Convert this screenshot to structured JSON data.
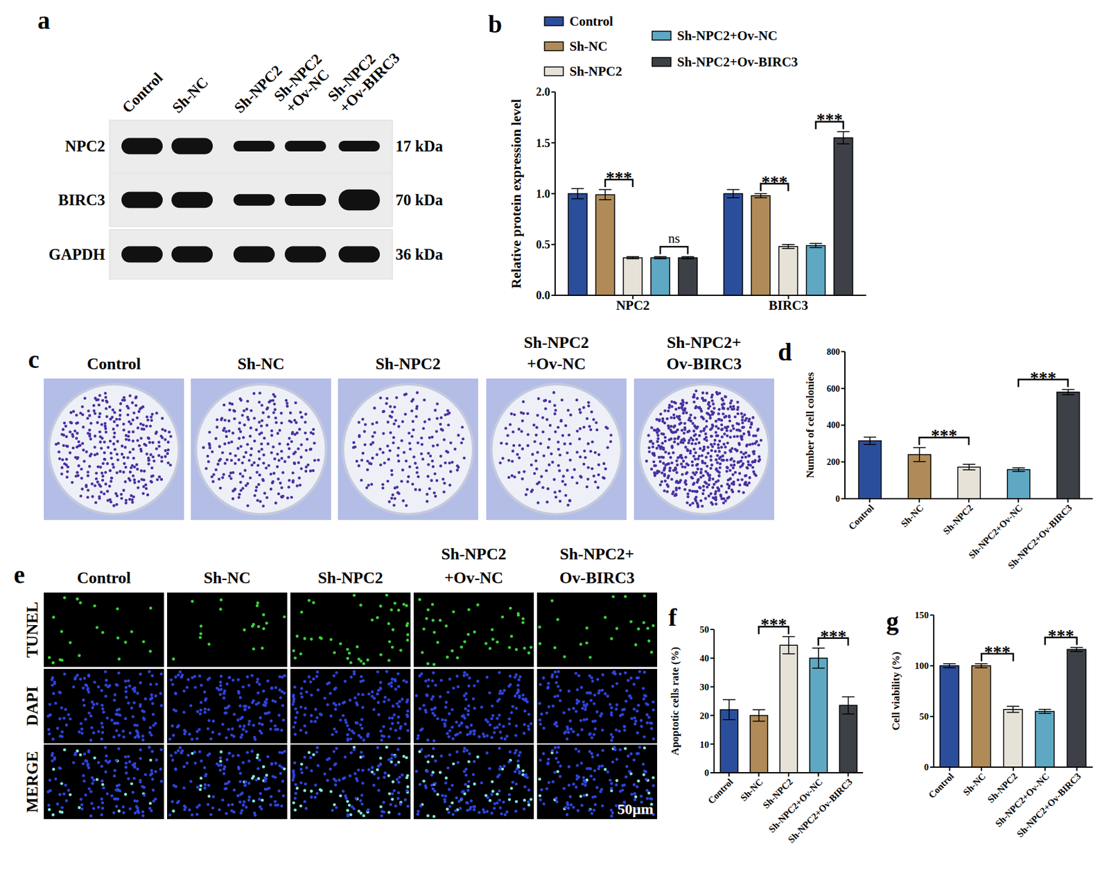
{
  "chart_data": [
    {
      "panel": "a",
      "type": "blot",
      "lanes": [
        [
          "Control"
        ],
        [
          "Sh-NC"
        ],
        [
          "Sh-NPC2"
        ],
        [
          "Sh-NPC2",
          "+Ov-NC"
        ],
        [
          "Sh-NPC2",
          "+Ov-BIRC3"
        ]
      ],
      "rows": [
        "NPC2",
        "BIRC3",
        "GAPDH"
      ],
      "sizes": [
        "17 kDa",
        "70 kDa",
        "36 kDa"
      ]
    },
    {
      "panel": "b",
      "type": "bar",
      "ylabel": "Relative protein expression level",
      "categories": [
        "NPC2",
        "BIRC3"
      ],
      "series": [
        {
          "name": "Control",
          "color": "#2b4e9c",
          "values": [
            1.0,
            1.0
          ],
          "errors": [
            0.05,
            0.04
          ]
        },
        {
          "name": "Sh-NC",
          "color": "#b08b58",
          "values": [
            0.99,
            0.98
          ],
          "errors": [
            0.05,
            0.02
          ]
        },
        {
          "name": "Sh-NPC2",
          "color": "#e6e2d8",
          "values": [
            0.37,
            0.48
          ],
          "errors": [
            0.01,
            0.02
          ]
        },
        {
          "name": "Sh-NPC2+Ov-NC",
          "color": "#5fa8c4",
          "values": [
            0.37,
            0.49
          ],
          "errors": [
            0.01,
            0.02
          ]
        },
        {
          "name": "Sh-NPC2+Ov-BIRC3",
          "color": "#3d4046",
          "values": [
            0.37,
            1.55
          ],
          "errors": [
            0.01,
            0.06
          ]
        }
      ],
      "ylim": [
        0,
        2
      ],
      "yticks": [
        {
          "value": 0,
          "label": "0.0"
        },
        0.5,
        {
          "value": 1,
          "label": "1.0"
        },
        1.5,
        {
          "value": 2,
          "label": "2.0"
        }
      ],
      "annotations": [
        {
          "text": "***",
          "category": "NPC2",
          "between": [
            "Sh-NC",
            "Sh-NPC2"
          ]
        },
        {
          "text": "ns",
          "category": "NPC2",
          "between": [
            "Sh-NPC2+Ov-NC",
            "Sh-NPC2+Ov-BIRC3"
          ]
        },
        {
          "text": "***",
          "category": "BIRC3",
          "between": [
            "Sh-NC",
            "Sh-NPC2"
          ]
        },
        {
          "text": "***",
          "category": "BIRC3",
          "between": [
            "Sh-NPC2+Ov-NC",
            "Sh-NPC2+Ov-BIRC3"
          ]
        }
      ]
    },
    {
      "panel": "c",
      "type": "plates",
      "labels": [
        [
          "Control"
        ],
        [
          "Sh-NC"
        ],
        [
          "Sh-NPC2"
        ],
        [
          "Sh-NPC2",
          "+Ov-NC"
        ],
        [
          "Sh-NPC2+",
          "Ov-BIRC3"
        ]
      ]
    },
    {
      "panel": "d",
      "type": "bar",
      "ylabel": "Number of cell colonies",
      "categories": [
        "Control",
        "Sh-NC",
        "Sh-NPC2",
        "Sh-NPC2+Ov-NC",
        "Sh-NPC2+Ov-BIRC3"
      ],
      "values": [
        315,
        240,
        172,
        158,
        580
      ],
      "errors": [
        20,
        38,
        15,
        10,
        14
      ],
      "colors": [
        "#2b4e9c",
        "#b08b58",
        "#e6e2d8",
        "#5fa8c4",
        "#3d4046"
      ],
      "ylim": [
        0,
        800
      ],
      "yticks": [
        0,
        200,
        400,
        600,
        800
      ],
      "annotations": [
        {
          "text": "***",
          "between": [
            "Sh-NC",
            "Sh-NPC2"
          ]
        },
        {
          "text": "***",
          "between": [
            "Sh-NPC2+Ov-NC",
            "Sh-NPC2+Ov-BIRC3"
          ]
        }
      ]
    },
    {
      "panel": "e",
      "type": "micrographs",
      "columns": [
        [
          "Control"
        ],
        [
          "Sh-NC"
        ],
        [
          "Sh-NPC2"
        ],
        [
          "Sh-NPC2",
          "+Ov-NC"
        ],
        [
          "Sh-NPC2+",
          "Ov-BIRC3"
        ]
      ],
      "rows": [
        "TUNEL",
        "DAPI",
        "MERGE"
      ],
      "scale_bar": "50μm"
    },
    {
      "panel": "f",
      "type": "bar",
      "ylabel": "Apoptotic cells rate (%)",
      "categories": [
        "Control",
        "Sh-NC",
        "Sh-NPC2",
        "Sh-NPC2+Ov-NC",
        "Sh-NPC2+Ov-BIRC3"
      ],
      "values": [
        22,
        20,
        44.5,
        40,
        23.5
      ],
      "errors": [
        3.5,
        2,
        3,
        3.5,
        3
      ],
      "colors": [
        "#2b4e9c",
        "#b08b58",
        "#e6e2d8",
        "#5fa8c4",
        "#3d4046"
      ],
      "ylim": [
        0,
        50
      ],
      "yticks": [
        0,
        10,
        20,
        30,
        40,
        50
      ],
      "annotations": [
        {
          "text": "***",
          "between": [
            "Sh-NC",
            "Sh-NPC2"
          ]
        },
        {
          "text": "***",
          "between": [
            "Sh-NPC2+Ov-NC",
            "Sh-NPC2+Ov-BIRC3"
          ]
        }
      ]
    },
    {
      "panel": "g",
      "type": "bar",
      "ylabel": "Cell viability (%)",
      "categories": [
        "Control",
        "Sh-NC",
        "Sh-NPC2",
        "Sh-NPC2+Ov-NC",
        "Sh-NPC2+Ov-BIRC3"
      ],
      "values": [
        100,
        100,
        57,
        55,
        116
      ],
      "errors": [
        2,
        2,
        3,
        2,
        2
      ],
      "colors": [
        "#2b4e9c",
        "#b08b58",
        "#e6e2d8",
        "#5fa8c4",
        "#3d4046"
      ],
      "ylim": [
        0,
        150
      ],
      "yticks": [
        0,
        50,
        100,
        150
      ],
      "annotations": [
        {
          "text": "***",
          "between": [
            "Sh-NC",
            "Sh-NPC2"
          ]
        },
        {
          "text": "***",
          "between": [
            "Sh-NPC2+Ov-NC",
            "Sh-NPC2+Ov-BIRC3"
          ]
        }
      ]
    }
  ]
}
